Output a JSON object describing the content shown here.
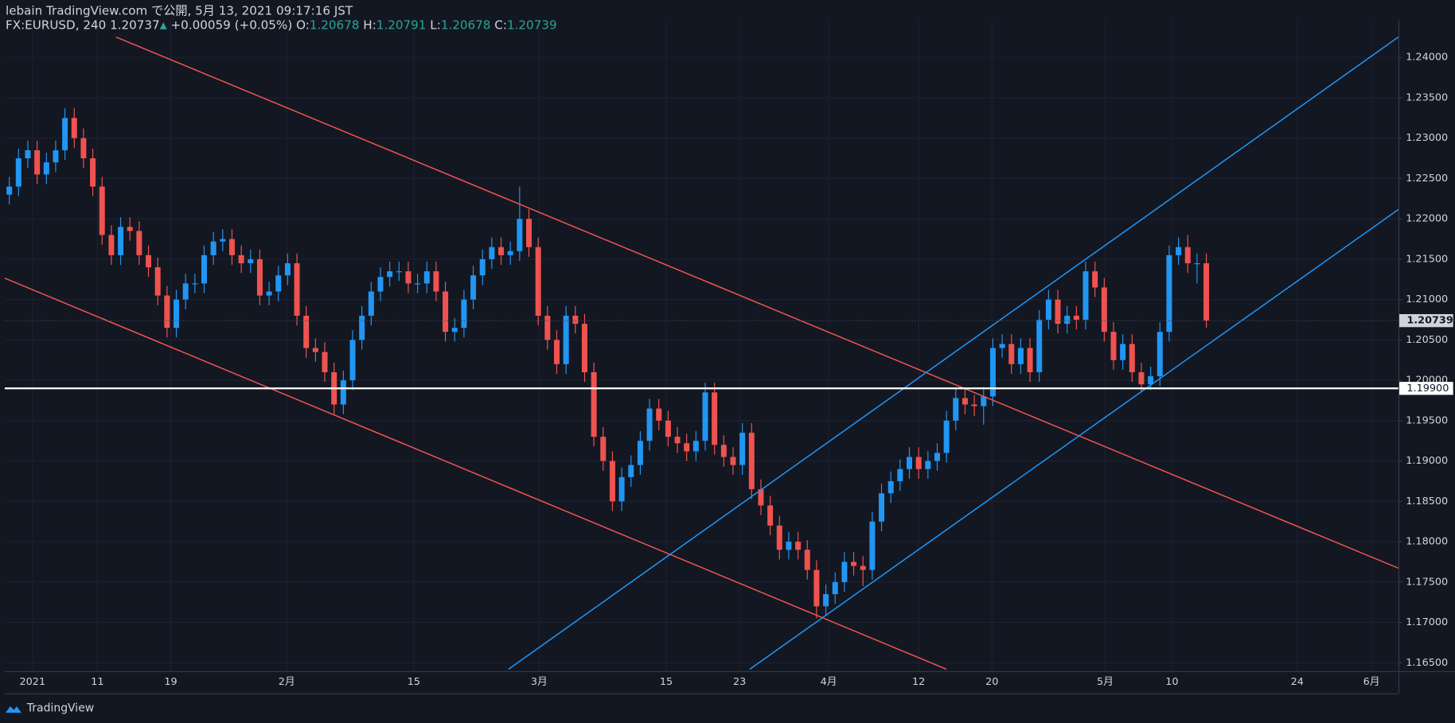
{
  "chart_data": {
    "type": "candlestick",
    "header": {
      "line1": "lebain TradingView.com で公開, 5月 13, 2021 09:17:16 JST",
      "symbol": "FX:EURUSD, 240",
      "last": "1.20737",
      "arrow": "▲",
      "change": "+0.00059 (+0.05%)",
      "o_label": "O:",
      "o": "1.20678",
      "h_label": "H:",
      "h": "1.20791",
      "l_label": "L:",
      "l": "1.20678",
      "c_label": "C:",
      "c": "1.20739"
    },
    "brand": "TradingView",
    "up_color": "#2196f3",
    "down_color": "#ef5350",
    "last_price": {
      "value": 1.20739,
      "label": "1.20739"
    },
    "level": {
      "value": 1.199,
      "label": "1.19900",
      "color": "#ffffff"
    },
    "xlim": [
      -0.5,
      149.7
    ],
    "ylim": [
      1.16397,
      1.24459
    ],
    "xticks": [
      {
        "value": 2.5,
        "label": "2021"
      },
      {
        "value": 9.5,
        "label": "11"
      },
      {
        "value": 17.4,
        "label": "19"
      },
      {
        "value": 29.9,
        "label": "2月"
      },
      {
        "value": 43.6,
        "label": "15"
      },
      {
        "value": 57.1,
        "label": "3月"
      },
      {
        "value": 70.8,
        "label": "15"
      },
      {
        "value": 78.7,
        "label": "23"
      },
      {
        "value": 88.3,
        "label": "4月"
      },
      {
        "value": 98,
        "label": "12"
      },
      {
        "value": 105.9,
        "label": "20"
      },
      {
        "value": 118.1,
        "label": "5月"
      },
      {
        "value": 125.3,
        "label": "10"
      },
      {
        "value": 138.8,
        "label": "24"
      },
      {
        "value": 146.8,
        "label": "6月"
      }
    ],
    "yticks": [
      {
        "value": 1.165,
        "label": "1.16500"
      },
      {
        "value": 1.17,
        "label": "1.17000"
      },
      {
        "value": 1.175,
        "label": "1.17500"
      },
      {
        "value": 1.18,
        "label": "1.18000"
      },
      {
        "value": 1.185,
        "label": "1.18500"
      },
      {
        "value": 1.19,
        "label": "1.19000"
      },
      {
        "value": 1.195,
        "label": "1.19500"
      },
      {
        "value": 1.2,
        "label": "1.20000"
      },
      {
        "value": 1.205,
        "label": "1.20500"
      },
      {
        "value": 1.21,
        "label": "1.21000"
      },
      {
        "value": 1.215,
        "label": "1.21500"
      },
      {
        "value": 1.22,
        "label": "1.22000"
      },
      {
        "value": 1.225,
        "label": "1.22500"
      },
      {
        "value": 1.23,
        "label": "1.23000"
      },
      {
        "value": 1.235,
        "label": "1.23500"
      },
      {
        "value": 1.24,
        "label": "1.24000"
      }
    ],
    "trendlines": [
      {
        "color": "#ef5350",
        "points": [
          [
            11.5,
            1.24253
          ],
          [
            149.7,
            1.17672
          ]
        ]
      },
      {
        "color": "#ef5350",
        "points": [
          [
            -0.5,
            1.21266
          ],
          [
            101,
            1.1642
          ]
        ]
      },
      {
        "color": "#2196f3",
        "points": [
          [
            53.8,
            1.1642
          ],
          [
            149.7,
            1.24253
          ]
        ]
      },
      {
        "color": "#2196f3",
        "points": [
          [
            79.8,
            1.1642
          ],
          [
            149.7,
            1.22116
          ]
        ]
      }
    ],
    "open": [
      1.223,
      1.224,
      1.2275,
      1.2285,
      1.2255,
      1.227,
      1.2285,
      1.2325,
      1.23,
      1.2275,
      1.224,
      1.218,
      1.2155,
      1.219,
      1.2185,
      1.2155,
      1.214,
      1.2105,
      1.2065,
      1.21,
      1.212,
      1.212,
      1.2155,
      1.2172,
      1.2175,
      1.2155,
      1.2145,
      1.215,
      1.2105,
      1.211,
      1.213,
      1.2145,
      1.208,
      1.204,
      1.2035,
      1.201,
      1.197,
      1.2,
      1.205,
      1.208,
      1.211,
      1.2128,
      1.2135,
      1.2135,
      1.212,
      1.212,
      1.2135,
      1.211,
      1.206,
      1.2065,
      1.21,
      1.213,
      1.215,
      1.2165,
      1.2155,
      1.216,
      1.22,
      1.2165,
      1.208,
      1.205,
      1.202,
      1.208,
      1.207,
      1.201,
      1.193,
      1.19,
      1.185,
      1.188,
      1.1895,
      1.1925,
      1.1965,
      1.195,
      1.193,
      1.1922,
      1.1912,
      1.1925,
      1.1985,
      1.192,
      1.1905,
      1.1895,
      1.1935,
      1.1865,
      1.1845,
      1.182,
      1.179,
      1.18,
      1.179,
      1.1765,
      1.172,
      1.1735,
      1.175,
      1.1775,
      1.177,
      1.1765,
      1.1825,
      1.186,
      1.1875,
      1.189,
      1.1905,
      1.189,
      1.19,
      1.191,
      1.195,
      1.1978,
      1.197,
      1.1968,
      1.198,
      1.204,
      1.2045,
      1.202,
      1.204,
      1.201,
      1.2075,
      1.21,
      1.207,
      1.208,
      1.2075,
      1.2135,
      1.2115,
      1.206,
      1.2025,
      1.2045,
      1.201,
      1.1995,
      1.2005,
      1.206,
      1.2155,
      1.2165,
      1.2145,
      1.2145
    ],
    "high": [
      1.2252,
      1.2287,
      1.2297,
      1.2297,
      1.2282,
      1.2297,
      1.2337,
      1.2337,
      1.2312,
      1.2287,
      1.2252,
      1.2192,
      1.2202,
      1.2202,
      1.2197,
      1.2167,
      1.2152,
      1.2117,
      1.2112,
      1.2132,
      1.2132,
      1.2167,
      1.2184,
      1.2187,
      1.2187,
      1.2167,
      1.2162,
      1.2162,
      1.2122,
      1.2142,
      1.2157,
      1.2157,
      1.2092,
      1.2052,
      1.2047,
      1.2022,
      1.2012,
      1.2062,
      1.2092,
      1.2122,
      1.214,
      1.2147,
      1.2147,
      1.2147,
      1.2132,
      1.2147,
      1.2147,
      1.2122,
      1.2077,
      1.2112,
      1.2142,
      1.2162,
      1.2177,
      1.2177,
      1.2172,
      1.224,
      1.2212,
      1.2177,
      1.2092,
      1.2062,
      1.2092,
      1.2092,
      1.2082,
      1.2022,
      1.1942,
      1.1912,
      1.1892,
      1.1907,
      1.1937,
      1.1977,
      1.1977,
      1.1962,
      1.1942,
      1.1934,
      1.1937,
      1.1997,
      1.1997,
      1.1932,
      1.1917,
      1.1947,
      1.1947,
      1.1877,
      1.1857,
      1.1832,
      1.1812,
      1.1812,
      1.1802,
      1.1777,
      1.1747,
      1.1762,
      1.1787,
      1.1787,
      1.1782,
      1.1837,
      1.1872,
      1.1887,
      1.1902,
      1.1917,
      1.1917,
      1.1912,
      1.1922,
      1.1962,
      1.199,
      1.199,
      1.1982,
      1.1992,
      1.2052,
      1.2057,
      1.2057,
      1.2052,
      1.2052,
      1.2087,
      1.2112,
      1.2112,
      1.2092,
      1.2092,
      1.2147,
      1.2147,
      1.2127,
      1.2072,
      1.2057,
      1.2057,
      1.2022,
      1.2017,
      1.2072,
      1.2167,
      1.2177,
      1.218,
      1.2157,
      1.2157
    ],
    "low": [
      1.2218,
      1.2228,
      1.2263,
      1.2243,
      1.2243,
      1.2258,
      1.2273,
      1.2288,
      1.2263,
      1.2228,
      1.2168,
      1.2143,
      1.2143,
      1.2173,
      1.2143,
      1.2128,
      1.2093,
      1.2053,
      1.2053,
      1.2088,
      1.2108,
      1.2108,
      1.2143,
      1.216,
      1.2143,
      1.2133,
      1.2133,
      1.2093,
      1.2093,
      1.2098,
      1.2118,
      1.2068,
      1.2028,
      1.2023,
      1.1998,
      1.1958,
      1.1958,
      1.1988,
      1.2038,
      1.2068,
      1.2098,
      1.2116,
      1.2123,
      1.2108,
      1.2108,
      1.2108,
      1.2098,
      1.2048,
      1.2048,
      1.2053,
      1.2088,
      1.2118,
      1.2138,
      1.2143,
      1.2143,
      1.2148,
      1.2153,
      1.2068,
      1.2038,
      1.2008,
      1.2008,
      1.2058,
      1.1998,
      1.1918,
      1.1888,
      1.1838,
      1.1838,
      1.1868,
      1.1883,
      1.1913,
      1.1938,
      1.1918,
      1.191,
      1.19,
      1.19,
      1.1913,
      1.1908,
      1.1893,
      1.1883,
      1.1883,
      1.1853,
      1.1833,
      1.1808,
      1.1778,
      1.1778,
      1.1778,
      1.1753,
      1.1705,
      1.1708,
      1.1723,
      1.1738,
      1.1758,
      1.1745,
      1.1753,
      1.1813,
      1.1848,
      1.1863,
      1.1878,
      1.1878,
      1.1878,
      1.1888,
      1.1898,
      1.1938,
      1.1958,
      1.1956,
      1.1945,
      1.1968,
      1.2028,
      1.2008,
      1.2008,
      1.1998,
      1.1998,
      1.2063,
      1.2058,
      1.2058,
      1.2063,
      1.2063,
      1.2103,
      1.2048,
      1.2013,
      1.2013,
      1.1998,
      1.1985,
      1.1988,
      1.1993,
      1.2048,
      1.2143,
      1.2133,
      1.212,
      1.2065
    ],
    "close": [
      1.224,
      1.2275,
      1.2285,
      1.2255,
      1.227,
      1.2285,
      1.2325,
      1.23,
      1.2275,
      1.224,
      1.218,
      1.2155,
      1.219,
      1.2185,
      1.2155,
      1.214,
      1.2105,
      1.2065,
      1.21,
      1.212,
      1.212,
      1.2155,
      1.2172,
      1.2175,
      1.2155,
      1.2145,
      1.215,
      1.2105,
      1.211,
      1.213,
      1.2145,
      1.208,
      1.204,
      1.2035,
      1.201,
      1.197,
      1.2,
      1.205,
      1.208,
      1.211,
      1.2128,
      1.2135,
      1.2135,
      1.212,
      1.212,
      1.2135,
      1.211,
      1.206,
      1.2065,
      1.21,
      1.213,
      1.215,
      1.2165,
      1.2155,
      1.216,
      1.22,
      1.2165,
      1.208,
      1.205,
      1.202,
      1.208,
      1.207,
      1.201,
      1.193,
      1.19,
      1.185,
      1.188,
      1.1895,
      1.1925,
      1.1965,
      1.195,
      1.193,
      1.1922,
      1.1912,
      1.1925,
      1.1985,
      1.192,
      1.1905,
      1.1895,
      1.1935,
      1.1865,
      1.1845,
      1.182,
      1.179,
      1.18,
      1.179,
      1.1765,
      1.172,
      1.1735,
      1.175,
      1.1775,
      1.177,
      1.1765,
      1.1825,
      1.186,
      1.1875,
      1.189,
      1.1905,
      1.189,
      1.19,
      1.191,
      1.195,
      1.1978,
      1.197,
      1.1968,
      1.198,
      1.204,
      1.2045,
      1.202,
      1.204,
      1.201,
      1.2075,
      1.21,
      1.207,
      1.208,
      1.2075,
      1.2135,
      1.2115,
      1.206,
      1.2025,
      1.2045,
      1.201,
      1.1995,
      1.2005,
      1.206,
      1.2155,
      1.2165,
      1.2145,
      1.2145,
      1.2074
    ]
  }
}
